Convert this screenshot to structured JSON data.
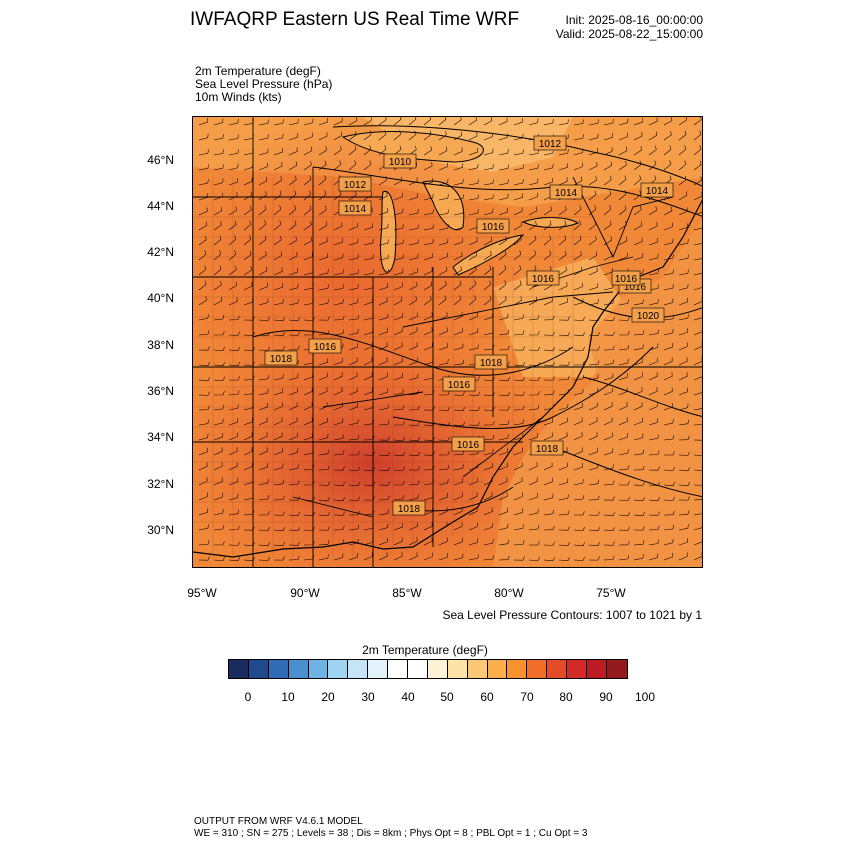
{
  "title": "IWFAQRP Eastern US Real Time WRF",
  "init": "Init: 2025-08-16_00:00:00",
  "valid": "Valid: 2025-08-22_15:00:00",
  "fields": [
    "2m Temperature   (degF)",
    "Sea Level Pressure   (hPa)",
    "10m Winds   (kts)"
  ],
  "lat_labels": [
    "46°N",
    "44°N",
    "42°N",
    "40°N",
    "38°N",
    "36°N",
    "34°N",
    "32°N",
    "30°N"
  ],
  "lon_labels": [
    "95°W",
    "90°W",
    "85°W",
    "80°W",
    "75°W"
  ],
  "pressure_labels": [
    "1012",
    "1010",
    "1012",
    "1014",
    "1014",
    "1014",
    "1016",
    "1016",
    "1016",
    "1018",
    "1016",
    "1018",
    "1016",
    "1020",
    "1018",
    "1016",
    "1018",
    "1016"
  ],
  "contour_note": "Sea Level Pressure Contours: 1007 to 1021 by 1",
  "colorbar": {
    "title": "2m Temperature  (degF)",
    "colors": [
      "#1a2b5e",
      "#1f4a8c",
      "#2f6cb4",
      "#4a90cf",
      "#6fb3e4",
      "#9fd3f2",
      "#c4e5f7",
      "#e3f2fb",
      "#ffffff",
      "#ffffff",
      "#fef3d4",
      "#fde3a6",
      "#fdc876",
      "#fcaf4a",
      "#f8922f",
      "#f06e28",
      "#e64b28",
      "#d42a27",
      "#bb1c24",
      "#951a1e"
    ],
    "ticks": [
      "0",
      "10",
      "20",
      "30",
      "40",
      "50",
      "60",
      "70",
      "80",
      "90",
      "100"
    ]
  },
  "footer": {
    "line1": "OUTPUT FROM WRF V4.6.1 MODEL",
    "line2": "WE = 310 ; SN = 275 ; Levels = 38 ; Dis = 8km ; Phys Opt = 8 ; PBL Opt = 1 ; Cu Opt = 3"
  }
}
